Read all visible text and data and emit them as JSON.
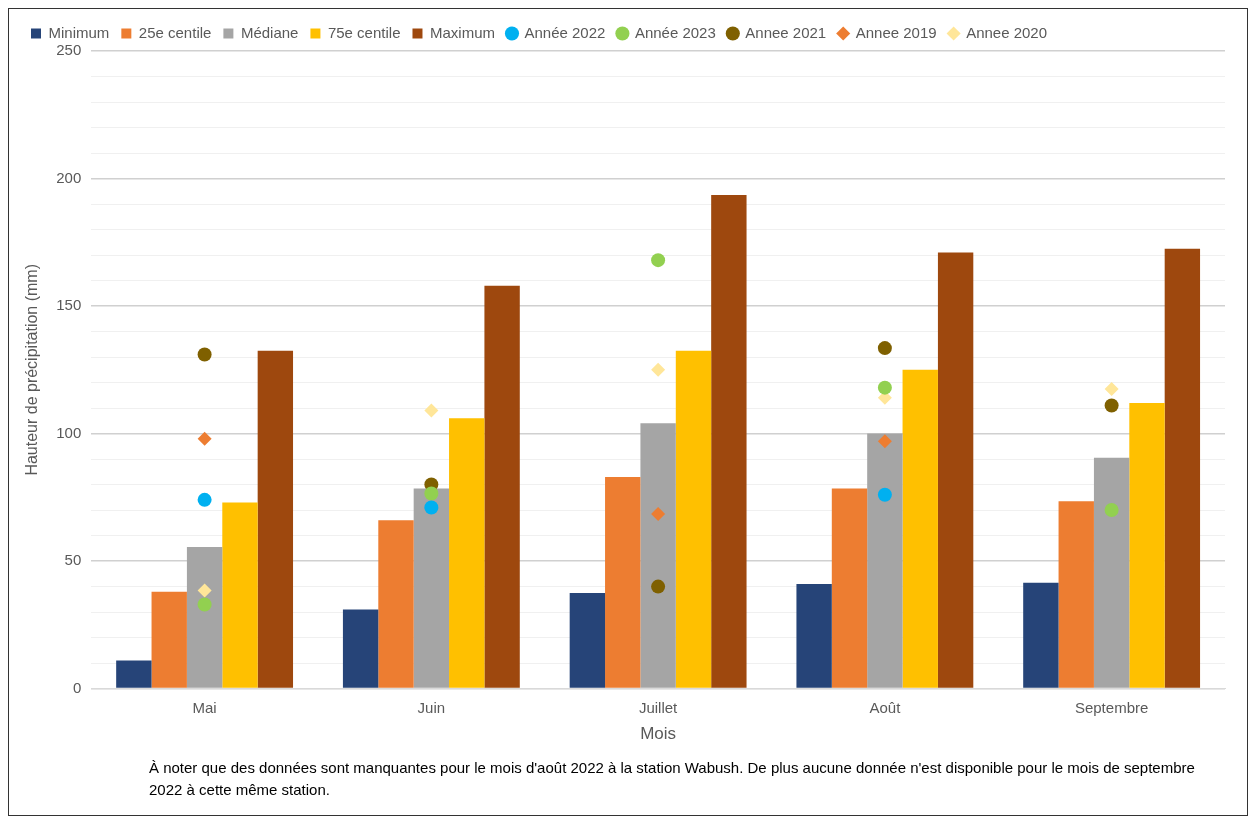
{
  "chart_data": {
    "type": "bar",
    "ylabel": "Hauteur de précipitation (mm)",
    "xlabel": "Mois",
    "categories": [
      "Mai",
      "Juin",
      "Juillet",
      "Août",
      "Septembre"
    ],
    "series": [
      {
        "name": "Minimum",
        "color": "#264478",
        "values": [
          11,
          31,
          37.5,
          41,
          41.5
        ]
      },
      {
        "name": "25e centile",
        "color": "#ed7d31",
        "values": [
          38,
          66,
          83,
          78.5,
          73.5
        ]
      },
      {
        "name": "Médiane",
        "color": "#a5a5a5",
        "values": [
          55.5,
          78.5,
          104,
          100,
          90.5
        ]
      },
      {
        "name": "75e centile",
        "color": "#ffc000",
        "values": [
          73,
          106,
          132.5,
          125,
          112
        ]
      },
      {
        "name": "Maximum",
        "color": "#9e480e",
        "values": [
          132.5,
          158,
          193.5,
          171,
          172.5
        ]
      },
      {
        "name": "Année 2022",
        "type": "scatter",
        "marker": "circle",
        "color": "#00b0f0",
        "values": [
          74,
          71,
          null,
          76,
          null
        ]
      },
      {
        "name": "Année 2023",
        "type": "scatter",
        "marker": "circle",
        "color": "#92d050",
        "values": [
          33,
          76.5,
          168,
          118,
          70
        ]
      },
      {
        "name": "Annee 2021",
        "type": "scatter",
        "marker": "circle",
        "color": "#7f6000",
        "values": [
          131,
          80,
          40,
          133.5,
          111
        ]
      },
      {
        "name": "Annee 2019",
        "type": "scatter",
        "marker": "diamond",
        "color": "#ed7d31",
        "values": [
          98,
          null,
          68.5,
          97,
          null
        ]
      },
      {
        "name": "Annee 2020",
        "type": "scatter",
        "marker": "diamond",
        "color": "#ffe699",
        "values": [
          38.5,
          109,
          125,
          114,
          117.5
        ]
      }
    ],
    "ylim": [
      0,
      250
    ],
    "yticks": [
      0,
      {
        "value": 10,
        "label": null
      },
      {
        "value": 20,
        "label": null
      },
      {
        "value": 30,
        "label": null
      },
      {
        "value": 40,
        "label": null
      },
      50,
      {
        "value": 60,
        "label": null
      },
      {
        "value": 70,
        "label": null
      },
      {
        "value": 80,
        "label": null
      },
      {
        "value": 90,
        "label": null
      },
      100,
      {
        "value": 110,
        "label": null
      },
      {
        "value": 120,
        "label": null
      },
      {
        "value": 130,
        "label": null
      },
      {
        "value": 140,
        "label": null
      },
      150,
      {
        "value": 160,
        "label": null
      },
      {
        "value": 170,
        "label": null
      },
      {
        "value": 180,
        "label": null
      },
      {
        "value": 190,
        "label": null
      },
      200,
      {
        "value": 210,
        "label": null
      },
      {
        "value": 220,
        "label": null
      },
      {
        "value": 230,
        "label": null
      },
      {
        "value": 240,
        "label": null
      },
      250
    ],
    "grid": "y",
    "legend": "top",
    "annotations": [
      "À noter que des données sont manquantes pour le mois d'août 2022 à la station Wabush. De plus aucune donnée n'est disponible pour le mois de septembre 2022 à cette même station."
    ]
  }
}
